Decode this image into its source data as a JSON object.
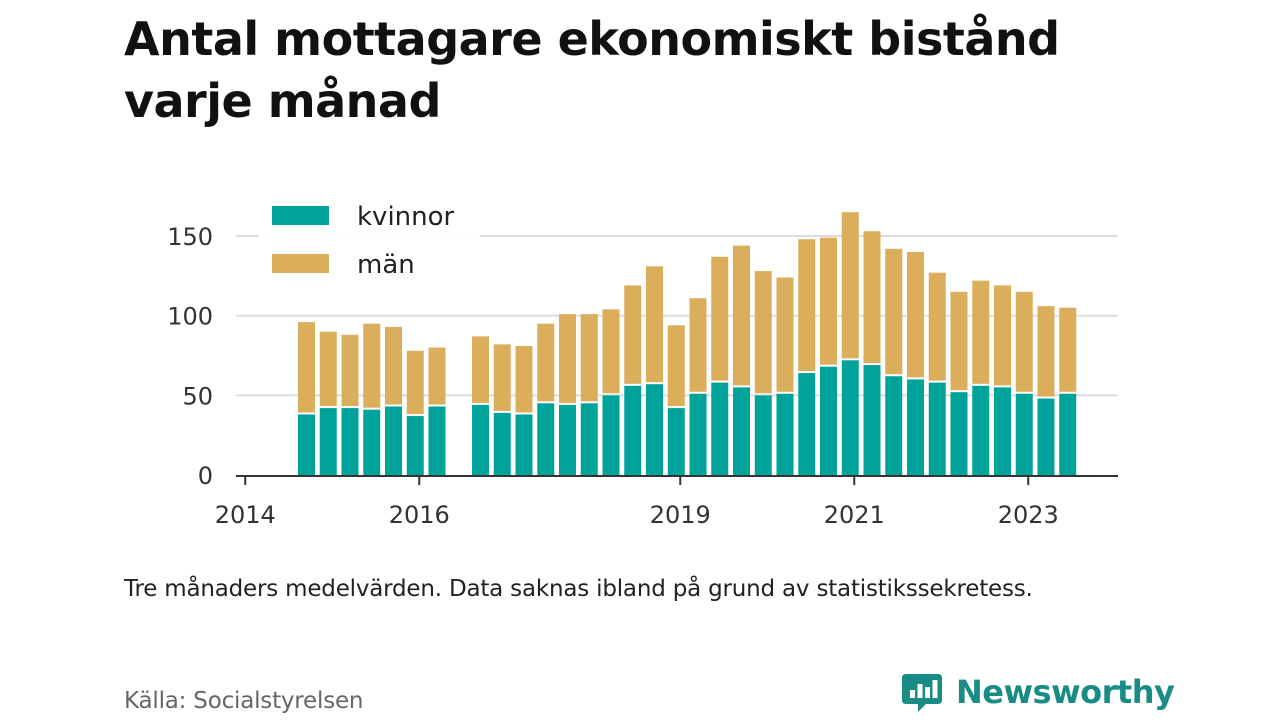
{
  "title": "Antal mottagare ekonomiskt bistånd varje månad",
  "note": "Tre månaders medelvärden. Data saknas ibland på grund av statistikssekretess.",
  "source": "Källa: Socialstyrelsen",
  "brand": {
    "name": "Newsworthy",
    "icon": "newsworthy-logo-icon"
  },
  "colors": {
    "kvinnor": "#00a39a",
    "man": "#dbae5c",
    "grid": "#dddddd",
    "axis": "#333333"
  },
  "chart_data": {
    "type": "bar",
    "stacked": true,
    "x_tick_labels": [
      "2014",
      "2016",
      "2019",
      "2021",
      "2023"
    ],
    "y_ticks": [
      0,
      50,
      100,
      150
    ],
    "ylim": [
      0,
      170
    ],
    "grid": "horizontal",
    "legend_position": "top-left",
    "legend": [
      {
        "name": "kvinnor",
        "color": "#00a39a"
      },
      {
        "name": "män",
        "color": "#dbae5c"
      }
    ],
    "x": [
      "2014-06",
      "2014-09",
      "2014-12",
      "2015-03",
      "2015-06",
      "2015-09",
      "2015-12",
      "2016-06",
      "2016-09",
      "2016-12",
      "2017-03",
      "2017-06",
      "2017-09",
      "2017-12",
      "2018-03",
      "2018-06",
      "2018-09",
      "2018-12",
      "2019-03",
      "2019-06",
      "2019-09",
      "2019-12",
      "2020-03",
      "2020-06",
      "2020-09",
      "2020-12",
      "2021-03",
      "2021-06",
      "2021-09",
      "2021-12",
      "2022-03",
      "2022-06",
      "2022-09",
      "2022-12",
      "2023-03"
    ],
    "series": [
      {
        "name": "kvinnor",
        "values": [
          38,
          42,
          42,
          41,
          43,
          37,
          43,
          44,
          39,
          38,
          45,
          44,
          45,
          50,
          56,
          57,
          42,
          51,
          58,
          55,
          50,
          51,
          64,
          68,
          72,
          69,
          62,
          60,
          58,
          52,
          56,
          55,
          51,
          48,
          51
        ]
      },
      {
        "name": "män",
        "values": [
          58,
          48,
          46,
          54,
          50,
          41,
          37,
          43,
          43,
          43,
          50,
          57,
          56,
          54,
          63,
          74,
          52,
          60,
          79,
          89,
          78,
          73,
          84,
          81,
          93,
          84,
          80,
          80,
          69,
          63,
          66,
          64,
          64,
          58,
          54
        ]
      }
    ]
  }
}
